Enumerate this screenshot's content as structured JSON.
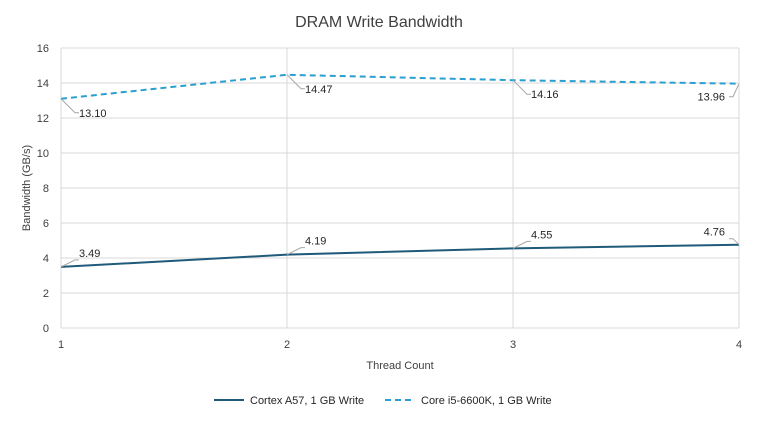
{
  "chart_data": {
    "type": "line",
    "title": "DRAM Write Bandwidth",
    "xlabel": "Thread Count",
    "ylabel": "Bandwidth (GB/s)",
    "x": [
      1,
      2,
      3,
      4
    ],
    "xlim": [
      1,
      4
    ],
    "ylim": [
      0,
      16
    ],
    "y_ticks": [
      0,
      2,
      4,
      6,
      8,
      10,
      12,
      14,
      16
    ],
    "x_tick_labels": [
      "1",
      "2",
      "3",
      "4"
    ],
    "y_tick_labels": [
      "0",
      "2",
      "4",
      "6",
      "8",
      "10",
      "12",
      "14",
      "16"
    ],
    "grid": true,
    "legend_position": "bottom",
    "series": [
      {
        "name": "Cortex A57, 1 GB Write",
        "values": [
          3.49,
          4.19,
          4.55,
          4.76
        ],
        "labels": [
          "3.49",
          "4.19",
          "4.55",
          "4.76"
        ],
        "color": "#1f5a7a",
        "style": "solid"
      },
      {
        "name": "Core i5-6600K, 1 GB Write",
        "values": [
          13.1,
          14.47,
          14.16,
          13.96
        ],
        "labels": [
          "13.10",
          "14.47",
          "14.16",
          "13.96"
        ],
        "color": "#2a9fd0",
        "style": "dashed"
      }
    ]
  }
}
